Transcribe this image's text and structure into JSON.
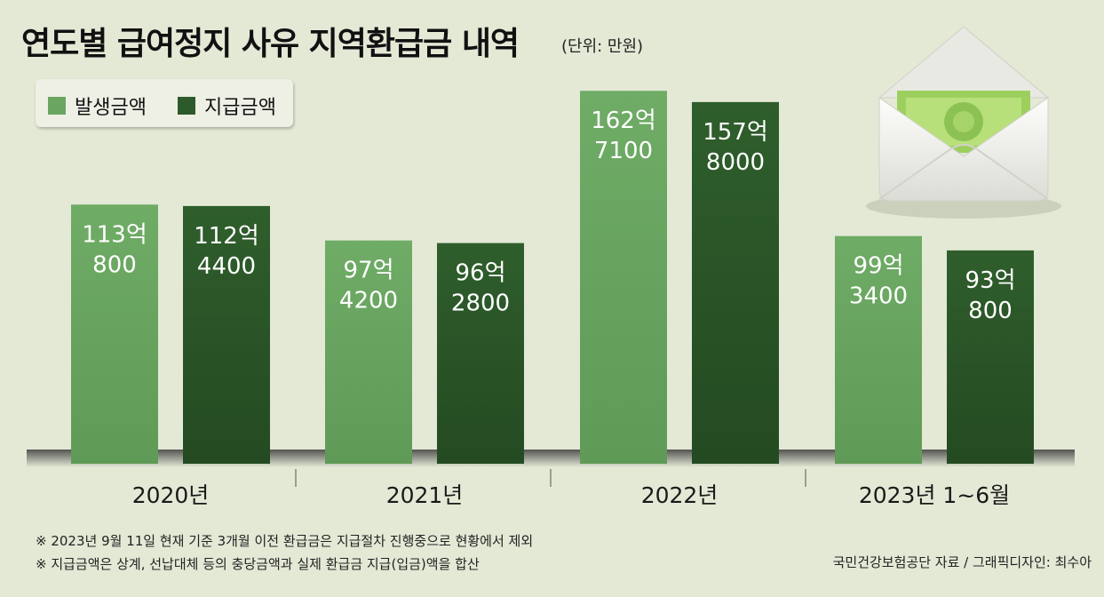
{
  "title": "연도별 급여정지 사유 지역환급금 내역",
  "unit_label": "(단위: 만원)",
  "legend": {
    "occurred": "발생금액",
    "paid": "지급금액"
  },
  "colors": {
    "occurred": "#6aa661",
    "paid": "#2d5a2a",
    "background": "#e4e9d6"
  },
  "chart_data": {
    "type": "bar",
    "title": "연도별 급여정지 사유 지역환급금 내역",
    "unit": "만원",
    "categories": [
      "2020년",
      "2021년",
      "2022년",
      "2023년 1~6월"
    ],
    "series": [
      {
        "name": "발생금액",
        "values": [
          1130800,
          974200,
          1627100,
          993400
        ],
        "label_lines": [
          [
            "113억",
            "800"
          ],
          [
            "97억",
            "4200"
          ],
          [
            "162억",
            "7100"
          ],
          [
            "99억",
            "3400"
          ]
        ]
      },
      {
        "name": "지급금액",
        "values": [
          1124400,
          962800,
          1578000,
          930800
        ],
        "label_lines": [
          [
            "112억",
            "4400"
          ],
          [
            "96억",
            "2800"
          ],
          [
            "157억",
            "8000"
          ],
          [
            "93억",
            "800"
          ]
        ]
      }
    ],
    "ylim": [
      0,
      1650000
    ],
    "xlabel": "",
    "ylabel": ""
  },
  "notes": [
    "※ 2023년 9월 11일 현재 기준 3개월 이전 환급금은 지급절차 진행중으로 현황에서 제외",
    "※ 지급금액은 상계, 선납대체 등의 충당금액과 실제 환급금 지급(입금)액을 합산"
  ],
  "credit": "국민건강보험공단 자료 / 그래픽디자인: 최수아"
}
